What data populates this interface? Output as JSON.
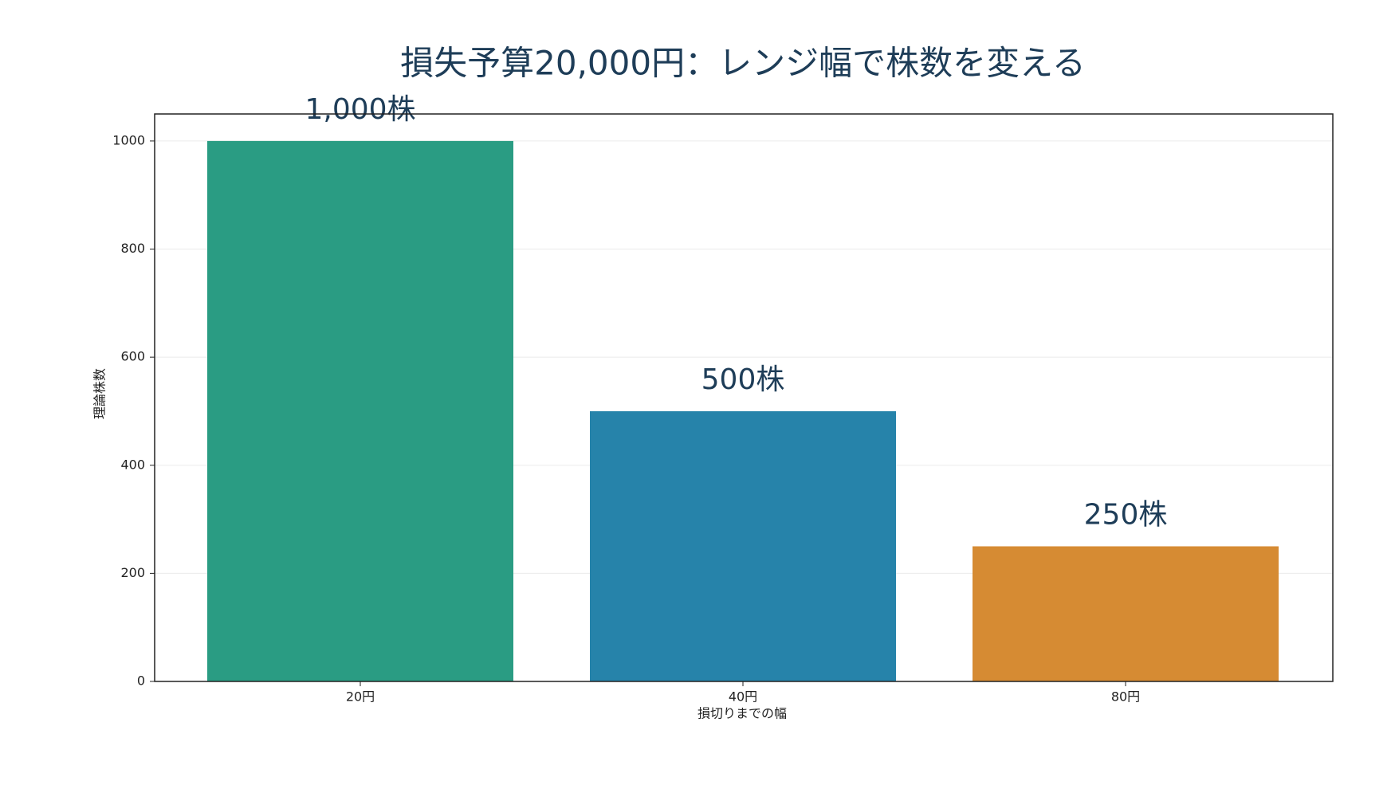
{
  "chart_data": {
    "type": "bar",
    "title": "損失予算20,000円：レンジ幅で株数を変える",
    "x_label": "損切りまでの幅",
    "y_label": "理論株数",
    "categories": [
      "20円",
      "40円",
      "80円"
    ],
    "values": [
      1000,
      500,
      250
    ],
    "value_labels": [
      "1,000株",
      "500株",
      "250株"
    ],
    "colors": [
      "#2a9c83",
      "#2683aa",
      "#d68b33"
    ],
    "ylim": [
      0,
      1050
    ],
    "yticks": [
      0,
      200,
      400,
      600,
      800,
      1000
    ],
    "grid": true
  }
}
